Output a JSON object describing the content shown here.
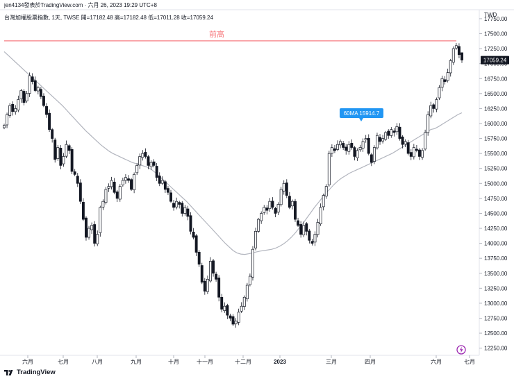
{
  "header": {
    "publisher_line": "jen4134發表於TradingView.com · 六月 26, 2023 19:29 UTC+8",
    "ohlc_line": "台灣加權股票指數, 1天, TWSE  開=17182.48  高=17182.48  低=17011.28  收=17059.24"
  },
  "footer": {
    "brand": "TradingView"
  },
  "icons": {
    "tv_logo": "tradingview-logo-icon",
    "alert": "lightning-alert-icon"
  },
  "colors": {
    "candle": "#131722",
    "ma_line": "#b2b5be",
    "resistance": "#f77c80",
    "ma_label_bg": "#2196f3",
    "last_price_bg": "#131722",
    "alert_icon": "#9c27b0"
  },
  "chart_data": {
    "type": "candlestick",
    "title": "台灣加權股票指數, 1天, TWSE",
    "currency": "TWD",
    "timeframe": "1天",
    "ohlc_last": {
      "open": 17182.48,
      "high": 17182.48,
      "low": 17011.28,
      "close": 17059.24
    },
    "last_price_label": "17059.24",
    "y_axis": {
      "ticks": [
        "17750.00",
        "17500.00",
        "17250.00",
        "17000.00",
        "16750.00",
        "16500.00",
        "16250.00",
        "16000.00",
        "15750.00",
        "15500.00",
        "15250.00",
        "15000.00",
        "14750.00",
        "14500.00",
        "14250.00",
        "14000.00",
        "13750.00",
        "13500.00",
        "13250.00",
        "13000.00",
        "12750.00",
        "12500.00",
        "12250.00"
      ],
      "range": [
        12130,
        17900
      ]
    },
    "x_axis": {
      "ticks": [
        "六月",
        "七月",
        "八月",
        "九月",
        "十月",
        "十一月",
        "十二月",
        "2023",
        "三月",
        "四月",
        "六月",
        "七月"
      ]
    },
    "annotations": {
      "resistance_label": "前高",
      "resistance_level": 17380,
      "ma_label": "60MA 15914.7"
    },
    "closes": [
      15970,
      16150,
      16300,
      16200,
      16250,
      16400,
      16550,
      16350,
      16500,
      16800,
      16700,
      16550,
      16600,
      16450,
      16300,
      16150,
      15900,
      15750,
      15400,
      15600,
      15300,
      15450,
      15650,
      15550,
      15200,
      15150,
      15000,
      14700,
      14400,
      14100,
      14250,
      14300,
      14000,
      14150,
      14600,
      14700,
      14900,
      14950,
      15050,
      14850,
      14750,
      14950,
      15050,
      15100,
      15050,
      14900,
      15150,
      15300,
      15450,
      15500,
      15450,
      15300,
      15350,
      15300,
      15100,
      15000,
      15050,
      14900,
      14850,
      14700,
      14600,
      14700,
      14650,
      14500,
      14600,
      14450,
      14200,
      14100,
      13850,
      13650,
      13350,
      13200,
      13400,
      13700,
      13500,
      13400,
      13100,
      12900,
      12950,
      12800,
      12750,
      12650,
      12700,
      12850,
      12950,
      13100,
      13300,
      13450,
      13900,
      14200,
      14400,
      14500,
      14600,
      14550,
      14700,
      14600,
      14500,
      14650,
      14900,
      15000,
      14800,
      14600,
      14700,
      14400,
      14300,
      14150,
      14300,
      14200,
      14050,
      14000,
      14150,
      14350,
      14600,
      14800,
      14950,
      15500,
      15600,
      15550,
      15650,
      15700,
      15600,
      15550,
      15650,
      15600,
      15450,
      15550,
      15600,
      15700,
      15750,
      15500,
      15350,
      15600,
      15800,
      15700,
      15750,
      15850,
      15800,
      15900,
      15850,
      15950,
      15750,
      15650,
      15700,
      15500,
      15450,
      15600,
      15550,
      15450,
      15550,
      15850,
      16150,
      16300,
      16250,
      16400,
      16600,
      16750,
      16700,
      16850,
      17050,
      17250,
      17300,
      17150,
      17059.24
    ],
    "ma60": [
      17200,
      17140,
      17080,
      17020,
      16960,
      16900,
      16840,
      16780,
      16720,
      16660,
      16600,
      16540,
      16480,
      16420,
      16360,
      16300,
      16230,
      16160,
      16090,
      16020,
      15950,
      15880,
      15820,
      15760,
      15700,
      15640,
      15590,
      15540,
      15500,
      15470,
      15440,
      15410,
      15380,
      15350,
      15330,
      15310,
      15290,
      15270,
      15230,
      15180,
      15120,
      15060,
      15000,
      14940,
      14880,
      14820,
      14760,
      14700,
      14630,
      14560,
      14490,
      14420,
      14350,
      14280,
      14210,
      14140,
      14070,
      14000,
      13940,
      13880,
      13840,
      13820,
      13815,
      13825,
      13840,
      13855,
      13870,
      13880,
      13890,
      13900,
      13920,
      13950,
      13990,
      14040,
      14100,
      14170,
      14250,
      14330,
      14420,
      14510,
      14600,
      14680,
      14760,
      14840,
      14910,
      14980,
      15040,
      15090,
      15130,
      15170,
      15200,
      15230,
      15260,
      15290,
      15320,
      15350,
      15380,
      15410,
      15440,
      15470,
      15500,
      15540,
      15580,
      15620,
      15660,
      15700,
      15740,
      15780,
      15820,
      15860,
      15900,
      15914.7,
      15950,
      15990,
      16030,
      16070,
      16110,
      16150,
      16180
    ]
  }
}
